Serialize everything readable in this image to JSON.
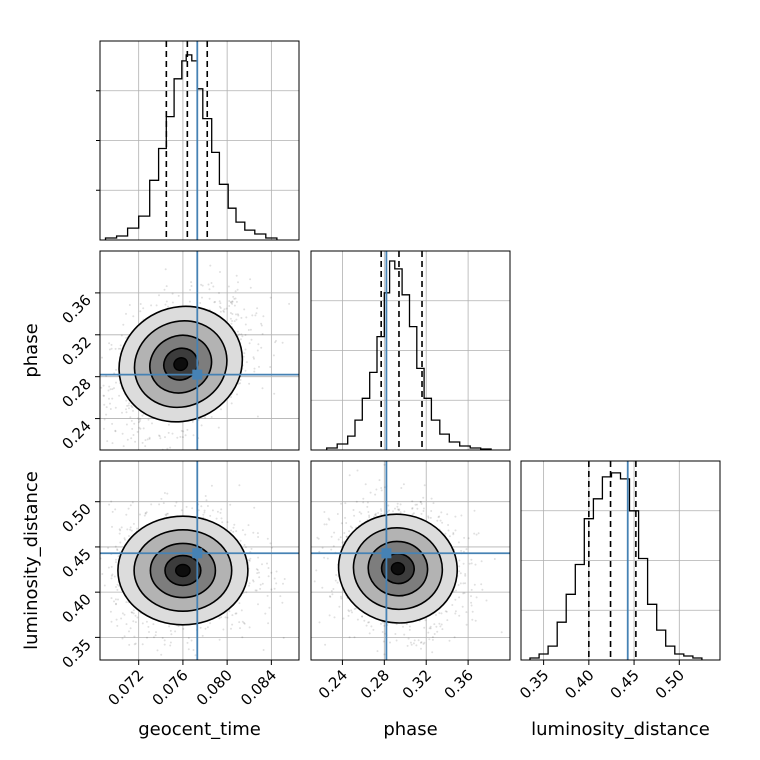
{
  "chart_data": {
    "type": "corner",
    "truth_color": "#4682b4",
    "parameters": [
      {
        "name": "geocent_time",
        "range": [
          0.0685,
          0.0865
        ],
        "ticks": [
          "0.072",
          "0.076",
          "0.080",
          "0.084"
        ],
        "tick_values": [
          0.072,
          0.076,
          0.08,
          0.084
        ],
        "truth": 0.0773,
        "quantiles": [
          0.0745,
          0.0764,
          0.0782
        ],
        "hist_edges": [
          0.069,
          0.07,
          0.071,
          0.072,
          0.073,
          0.0738,
          0.0745,
          0.0752,
          0.0759,
          0.0763,
          0.0768,
          0.0773,
          0.0778,
          0.0786,
          0.0793,
          0.0801,
          0.0808,
          0.0816,
          0.0825,
          0.0835,
          0.0845
        ],
        "hist_heights": [
          0.01,
          0.02,
          0.06,
          0.12,
          0.3,
          0.46,
          0.62,
          0.81,
          0.9,
          0.93,
          0.9,
          0.76,
          0.61,
          0.44,
          0.28,
          0.16,
          0.09,
          0.05,
          0.03,
          0.01
        ]
      },
      {
        "name": "phase",
        "range": [
          0.21,
          0.4
        ],
        "ticks": [
          "0.24",
          "0.28",
          "0.32",
          "0.36"
        ],
        "tick_values": [
          0.24,
          0.28,
          0.32,
          0.36
        ],
        "truth": 0.282,
        "quantiles": [
          0.277,
          0.294,
          0.316
        ],
        "hist_edges": [
          0.225,
          0.235,
          0.245,
          0.252,
          0.259,
          0.266,
          0.273,
          0.28,
          0.285,
          0.29,
          0.297,
          0.304,
          0.311,
          0.318,
          0.325,
          0.333,
          0.342,
          0.352,
          0.362,
          0.372,
          0.382
        ],
        "hist_heights": [
          0.01,
          0.03,
          0.07,
          0.15,
          0.26,
          0.39,
          0.57,
          0.79,
          0.95,
          0.91,
          0.78,
          0.62,
          0.41,
          0.26,
          0.15,
          0.08,
          0.04,
          0.02,
          0.01,
          0.005
        ]
      },
      {
        "name": "luminosity_distance",
        "range": [
          0.325,
          0.545
        ],
        "ticks": [
          "0.35",
          "0.40",
          "0.45",
          "0.50"
        ],
        "tick_values": [
          0.35,
          0.4,
          0.45,
          0.5
        ],
        "truth": 0.443,
        "quantiles": [
          0.4,
          0.424,
          0.452
        ],
        "hist_edges": [
          0.335,
          0.345,
          0.355,
          0.365,
          0.375,
          0.385,
          0.395,
          0.405,
          0.415,
          0.425,
          0.435,
          0.445,
          0.455,
          0.465,
          0.475,
          0.485,
          0.495,
          0.505,
          0.515,
          0.525
        ],
        "hist_heights": [
          0.01,
          0.03,
          0.07,
          0.19,
          0.33,
          0.48,
          0.71,
          0.81,
          0.92,
          0.94,
          0.91,
          0.75,
          0.51,
          0.28,
          0.15,
          0.07,
          0.03,
          0.02,
          0.01
        ]
      }
    ],
    "pairs": [
      {
        "x": 0,
        "y": 1,
        "center": [
          0.0758,
          0.292
        ],
        "sigma": [
          0.0027,
          0.027
        ],
        "rho": 0.35
      },
      {
        "x": 0,
        "y": 2,
        "center": [
          0.076,
          0.424
        ],
        "sigma": [
          0.0028,
          0.03
        ],
        "rho": 0.0
      },
      {
        "x": 1,
        "y": 2,
        "center": [
          0.293,
          0.426
        ],
        "sigma": [
          0.027,
          0.03
        ],
        "rho": -0.1
      }
    ]
  }
}
